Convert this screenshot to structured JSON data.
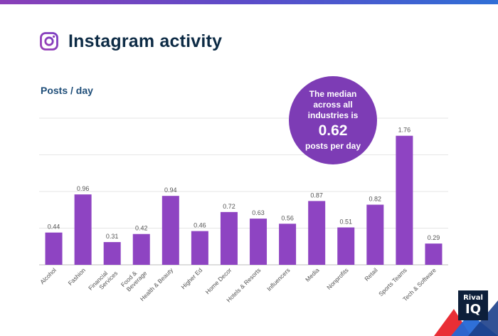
{
  "header": {
    "title": "Instagram activity",
    "icon": "instagram-icon"
  },
  "callout": {
    "line1": "The median across all industries is",
    "value": "0.62",
    "line2": "posts per day"
  },
  "logo": {
    "line1": "Rival",
    "line2": "IQ"
  },
  "colors": {
    "bar": "#8e44c2",
    "bubble": "#7d3cb5",
    "title": "#0d2b45",
    "axis_title": "#1f4e79",
    "grid": "#e6e6e6"
  },
  "chart_data": {
    "type": "bar",
    "title": "",
    "xlabel": "",
    "ylabel": "Posts / day",
    "ylim": [
      0,
      2.0
    ],
    "grid": true,
    "categories": [
      "Alcohol",
      "Fashion",
      "Financial Services",
      "Food & Beverage",
      "Health & Beauty",
      "Higher Ed",
      "Home Decor",
      "Hotels & Resorts",
      "Influencers",
      "Media",
      "Nonprofits",
      "Retail",
      "Sports Teams",
      "Tech & Software"
    ],
    "values": [
      0.44,
      0.96,
      0.31,
      0.42,
      0.94,
      0.46,
      0.72,
      0.63,
      0.56,
      0.87,
      0.51,
      0.82,
      1.76,
      0.29
    ],
    "value_labels": [
      "0.44",
      "0.96",
      "0.31",
      "0.42",
      "0.94",
      "0.46",
      "0.72",
      "0.63",
      "0.56",
      "0.87",
      "0.51",
      "0.82",
      "1.76",
      "0.29"
    ]
  }
}
